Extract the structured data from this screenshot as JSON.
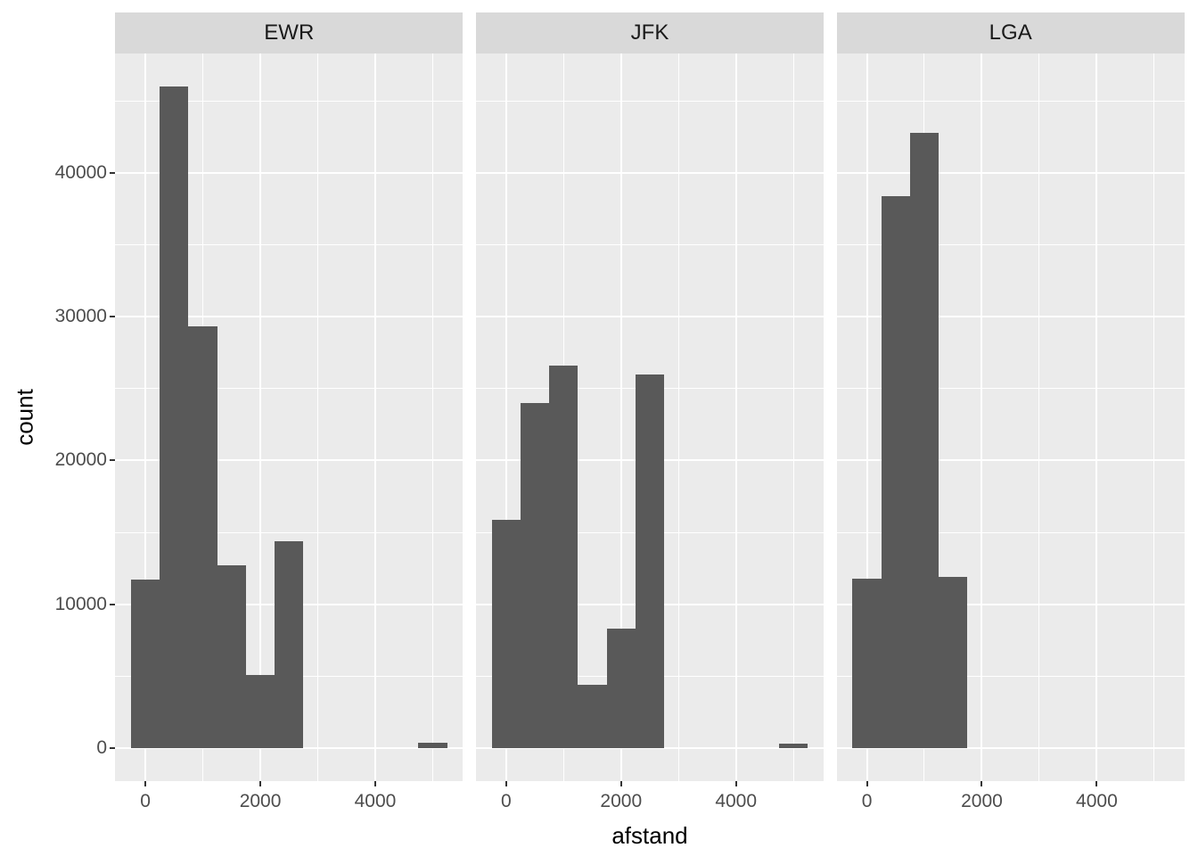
{
  "chart_data": {
    "type": "bar",
    "subtype": "faceted-histogram",
    "title": "",
    "xlabel": "afstand",
    "ylabel": "count",
    "legend": "none",
    "grid": "on",
    "binwidth": 500,
    "xlim": [
      -525,
      5525
    ],
    "ylim": [
      -2294,
      48294
    ],
    "x_ticks": [
      0,
      2000,
      4000
    ],
    "x_tick_labels": [
      "0",
      "2000",
      "4000"
    ],
    "x_minor_ticks": [
      1000,
      3000,
      5000
    ],
    "y_ticks": [
      0,
      10000,
      20000,
      30000,
      40000
    ],
    "y_tick_labels": [
      "0",
      "10000",
      "20000",
      "30000",
      "40000"
    ],
    "y_minor_ticks": [
      5000,
      15000,
      25000,
      35000,
      45000
    ],
    "facets": [
      {
        "label": "EWR",
        "bins": [
          {
            "x0": -250,
            "x1": 250,
            "count": 11700
          },
          {
            "x0": 250,
            "x1": 750,
            "count": 46000
          },
          {
            "x0": 750,
            "x1": 1250,
            "count": 29300
          },
          {
            "x0": 1250,
            "x1": 1750,
            "count": 12700
          },
          {
            "x0": 1750,
            "x1": 2250,
            "count": 5100
          },
          {
            "x0": 2250,
            "x1": 2750,
            "count": 14400
          },
          {
            "x0": 4750,
            "x1": 5250,
            "count": 370
          }
        ]
      },
      {
        "label": "JFK",
        "bins": [
          {
            "x0": -250,
            "x1": 250,
            "count": 15850
          },
          {
            "x0": 250,
            "x1": 750,
            "count": 24000
          },
          {
            "x0": 750,
            "x1": 1250,
            "count": 26600
          },
          {
            "x0": 1250,
            "x1": 1750,
            "count": 4400
          },
          {
            "x0": 1750,
            "x1": 2250,
            "count": 8300
          },
          {
            "x0": 2250,
            "x1": 2750,
            "count": 26000
          },
          {
            "x0": 4750,
            "x1": 5250,
            "count": 340
          }
        ]
      },
      {
        "label": "LGA",
        "bins": [
          {
            "x0": -250,
            "x1": 250,
            "count": 11800
          },
          {
            "x0": 250,
            "x1": 750,
            "count": 38400
          },
          {
            "x0": 750,
            "x1": 1250,
            "count": 42800
          },
          {
            "x0": 1250,
            "x1": 1750,
            "count": 11900
          }
        ]
      }
    ]
  },
  "style": {
    "figure_bg": "#ffffff",
    "panel_bg": "#ebebeb",
    "strip_bg": "#d9d9d9",
    "strip_text": "#1a1a1a",
    "bar_fill": "#595959",
    "grid_color": "#ffffff",
    "tick_text": "#4d4d4d",
    "tick_mark": "#333333",
    "axis_title_color": "#000000"
  }
}
